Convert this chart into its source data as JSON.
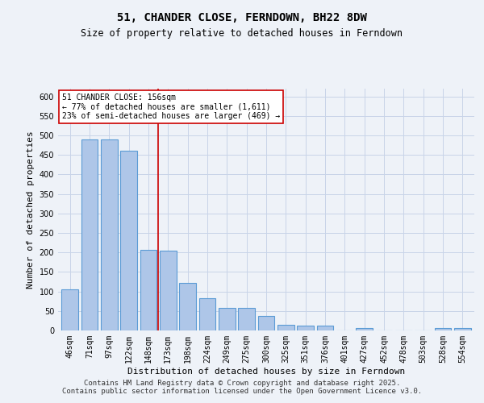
{
  "title": "51, CHANDER CLOSE, FERNDOWN, BH22 8DW",
  "subtitle": "Size of property relative to detached houses in Ferndown",
  "xlabel": "Distribution of detached houses by size in Ferndown",
  "ylabel": "Number of detached properties",
  "categories": [
    "46sqm",
    "71sqm",
    "97sqm",
    "122sqm",
    "148sqm",
    "173sqm",
    "198sqm",
    "224sqm",
    "249sqm",
    "275sqm",
    "300sqm",
    "325sqm",
    "351sqm",
    "376sqm",
    "401sqm",
    "427sqm",
    "452sqm",
    "478sqm",
    "503sqm",
    "528sqm",
    "554sqm"
  ],
  "values": [
    105,
    490,
    490,
    460,
    207,
    205,
    122,
    82,
    57,
    57,
    38,
    15,
    13,
    12,
    0,
    7,
    0,
    0,
    0,
    7,
    7
  ],
  "bar_color": "#aec6e8",
  "bar_edge_color": "#5b9bd5",
  "bar_edge_width": 0.8,
  "grid_color": "#c8d4e8",
  "background_color": "#eef2f8",
  "vline_x": 4.5,
  "vline_color": "#cc0000",
  "annotation_text": "51 CHANDER CLOSE: 156sqm\n← 77% of detached houses are smaller (1,611)\n23% of semi-detached houses are larger (469) →",
  "annotation_box_color": "#ffffff",
  "annotation_box_edge": "#cc0000",
  "ylim": [
    0,
    620
  ],
  "yticks": [
    0,
    50,
    100,
    150,
    200,
    250,
    300,
    350,
    400,
    450,
    500,
    550,
    600
  ],
  "footer": "Contains HM Land Registry data © Crown copyright and database right 2025.\nContains public sector information licensed under the Open Government Licence v3.0.",
  "title_fontsize": 10,
  "subtitle_fontsize": 8.5,
  "axis_label_fontsize": 8,
  "tick_fontsize": 7,
  "footer_fontsize": 6.5
}
